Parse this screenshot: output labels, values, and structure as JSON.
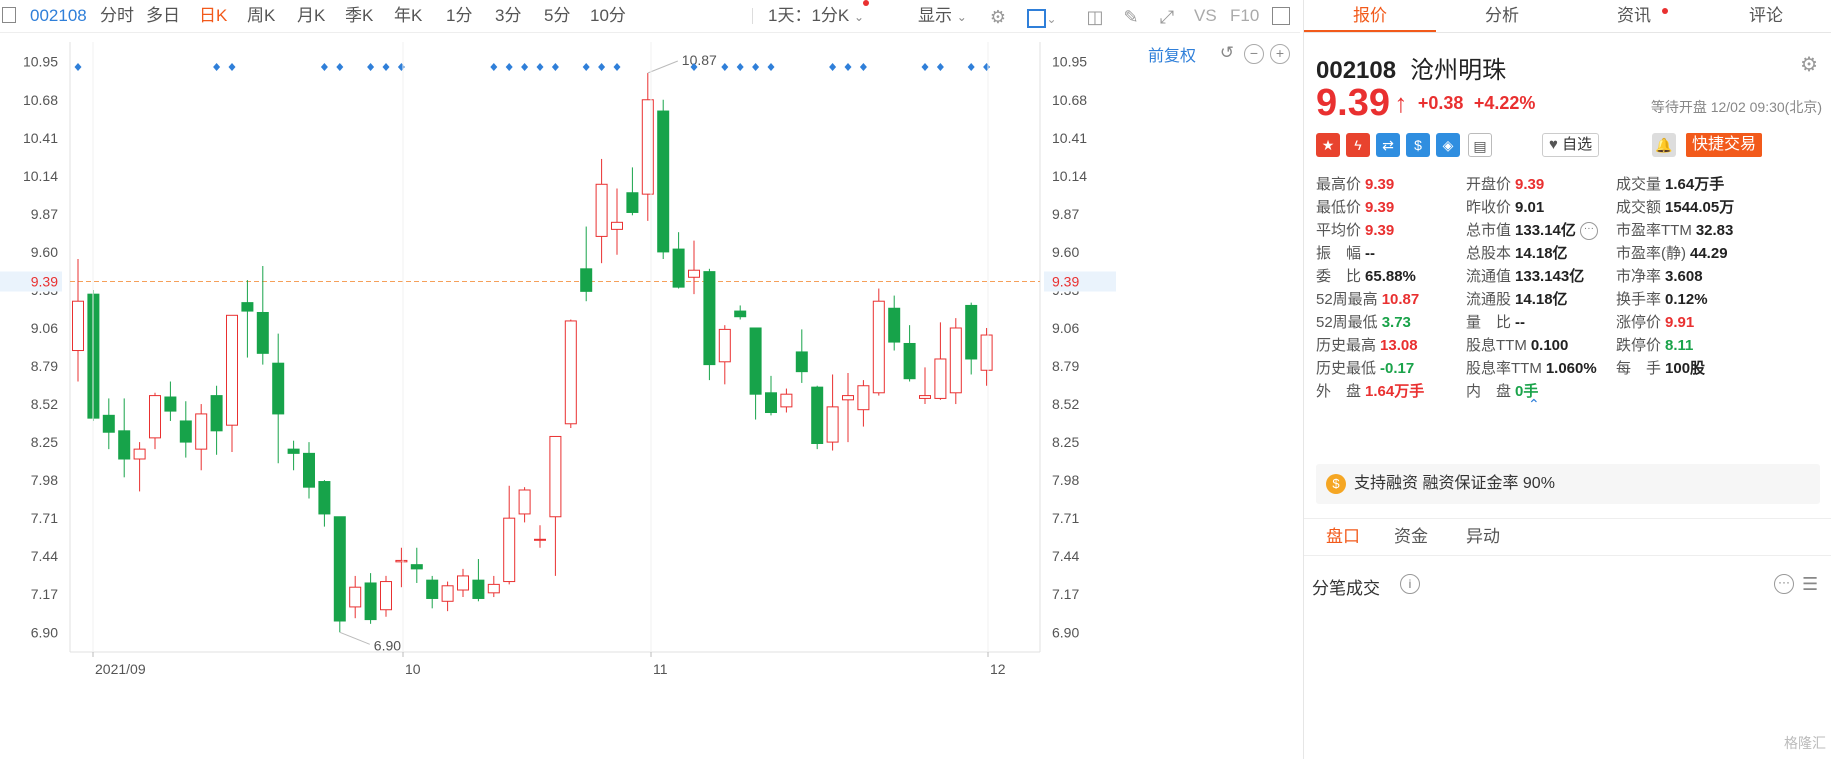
{
  "toolbar": {
    "code": "002108",
    "periods": [
      "分时",
      "多日",
      "日K",
      "周K",
      "月K",
      "季K",
      "年K",
      "1分",
      "3分",
      "5分",
      "10分"
    ],
    "active_period": "日K",
    "interval": "1天：1分K",
    "display": "显示",
    "vs": "VS",
    "f10": "F10"
  },
  "chart": {
    "adjust": "前复权",
    "yticks": [
      "10.95",
      "10.68",
      "10.41",
      "10.14",
      "9.87",
      "9.60",
      "9.33",
      "9.06",
      "8.79",
      "8.52",
      "8.25",
      "7.98",
      "7.71",
      "7.44",
      "7.17",
      "6.90"
    ],
    "current_price_label": "9.39",
    "max_label": "10.87",
    "min_label": "6.90",
    "xlabels": [
      "2021/09",
      "10",
      "11",
      "12"
    ]
  },
  "chart_data": {
    "type": "candlestick",
    "ylim": [
      6.76,
      11.09
    ],
    "current_price": 9.39,
    "candles": [
      {
        "o": 8.9,
        "h": 9.55,
        "l": 8.68,
        "c": 9.25
      },
      {
        "o": 9.3,
        "h": 9.33,
        "l": 8.4,
        "c": 8.42
      },
      {
        "o": 8.44,
        "h": 8.56,
        "l": 8.2,
        "c": 8.32
      },
      {
        "o": 8.33,
        "h": 8.56,
        "l": 8.0,
        "c": 8.13
      },
      {
        "o": 8.13,
        "h": 8.25,
        "l": 7.9,
        "c": 8.2
      },
      {
        "o": 8.28,
        "h": 8.6,
        "l": 8.2,
        "c": 8.58
      },
      {
        "o": 8.57,
        "h": 8.68,
        "l": 8.4,
        "c": 8.47
      },
      {
        "o": 8.4,
        "h": 8.54,
        "l": 8.14,
        "c": 8.25
      },
      {
        "o": 8.2,
        "h": 8.52,
        "l": 8.05,
        "c": 8.45
      },
      {
        "o": 8.58,
        "h": 8.65,
        "l": 8.16,
        "c": 8.33
      },
      {
        "o": 8.37,
        "h": 9.15,
        "l": 8.18,
        "c": 9.15
      },
      {
        "o": 9.24,
        "h": 9.4,
        "l": 8.85,
        "c": 9.18
      },
      {
        "o": 9.17,
        "h": 9.5,
        "l": 8.8,
        "c": 8.88
      },
      {
        "o": 8.81,
        "h": 9.02,
        "l": 8.1,
        "c": 8.45
      },
      {
        "o": 8.2,
        "h": 8.26,
        "l": 8.05,
        "c": 8.17
      },
      {
        "o": 8.17,
        "h": 8.25,
        "l": 7.85,
        "c": 7.93
      },
      {
        "o": 7.97,
        "h": 7.98,
        "l": 7.65,
        "c": 7.74
      },
      {
        "o": 7.72,
        "h": 7.72,
        "l": 6.9,
        "c": 6.98
      },
      {
        "o": 7.08,
        "h": 7.3,
        "l": 7.0,
        "c": 7.22
      },
      {
        "o": 7.25,
        "h": 7.32,
        "l": 6.96,
        "c": 6.99
      },
      {
        "o": 7.06,
        "h": 7.3,
        "l": 7.01,
        "c": 7.26
      },
      {
        "o": 7.4,
        "h": 7.5,
        "l": 7.22,
        "c": 7.41
      },
      {
        "o": 7.38,
        "h": 7.5,
        "l": 7.25,
        "c": 7.35
      },
      {
        "o": 7.27,
        "h": 7.3,
        "l": 7.07,
        "c": 7.14
      },
      {
        "o": 7.12,
        "h": 7.26,
        "l": 7.05,
        "c": 7.23
      },
      {
        "o": 7.2,
        "h": 7.35,
        "l": 7.15,
        "c": 7.3
      },
      {
        "o": 7.27,
        "h": 7.42,
        "l": 7.12,
        "c": 7.14
      },
      {
        "o": 7.18,
        "h": 7.3,
        "l": 7.15,
        "c": 7.24
      },
      {
        "o": 7.26,
        "h": 7.94,
        "l": 7.24,
        "c": 7.71
      },
      {
        "o": 7.74,
        "h": 7.93,
        "l": 7.68,
        "c": 7.91
      },
      {
        "o": 7.56,
        "h": 7.66,
        "l": 7.5,
        "c": 7.56
      },
      {
        "o": 7.72,
        "h": 8.29,
        "l": 7.3,
        "c": 8.29
      },
      {
        "o": 8.38,
        "h": 9.12,
        "l": 8.35,
        "c": 9.11
      },
      {
        "o": 9.48,
        "h": 9.78,
        "l": 9.25,
        "c": 9.32
      },
      {
        "o": 9.71,
        "h": 10.26,
        "l": 9.52,
        "c": 10.08
      },
      {
        "o": 9.76,
        "h": 10.05,
        "l": 9.58,
        "c": 9.81
      },
      {
        "o": 10.02,
        "h": 10.2,
        "l": 9.86,
        "c": 9.88
      },
      {
        "o": 10.01,
        "h": 10.87,
        "l": 9.82,
        "c": 10.68
      },
      {
        "o": 10.6,
        "h": 10.68,
        "l": 9.55,
        "c": 9.6
      },
      {
        "o": 9.62,
        "h": 9.74,
        "l": 9.34,
        "c": 9.35
      },
      {
        "o": 9.42,
        "h": 9.68,
        "l": 9.3,
        "c": 9.47
      },
      {
        "o": 9.46,
        "h": 9.48,
        "l": 8.69,
        "c": 8.8
      },
      {
        "o": 8.82,
        "h": 9.08,
        "l": 8.66,
        "c": 9.05
      },
      {
        "o": 9.18,
        "h": 9.22,
        "l": 9.12,
        "c": 9.14
      },
      {
        "o": 9.06,
        "h": 9.06,
        "l": 8.41,
        "c": 8.59
      },
      {
        "o": 8.6,
        "h": 8.72,
        "l": 8.44,
        "c": 8.46
      },
      {
        "o": 8.5,
        "h": 8.63,
        "l": 8.46,
        "c": 8.59
      },
      {
        "o": 8.89,
        "h": 9.05,
        "l": 8.67,
        "c": 8.75
      },
      {
        "o": 8.64,
        "h": 8.65,
        "l": 8.2,
        "c": 8.24
      },
      {
        "o": 8.25,
        "h": 8.73,
        "l": 8.19,
        "c": 8.5
      },
      {
        "o": 8.55,
        "h": 8.74,
        "l": 8.25,
        "c": 8.58
      },
      {
        "o": 8.48,
        "h": 8.69,
        "l": 8.36,
        "c": 8.65
      },
      {
        "o": 8.6,
        "h": 9.34,
        "l": 8.58,
        "c": 9.25
      },
      {
        "o": 9.2,
        "h": 9.29,
        "l": 8.9,
        "c": 8.96
      },
      {
        "o": 8.95,
        "h": 9.08,
        "l": 8.68,
        "c": 8.7
      },
      {
        "o": 8.56,
        "h": 8.78,
        "l": 8.52,
        "c": 8.58
      },
      {
        "o": 8.56,
        "h": 9.1,
        "l": 8.55,
        "c": 8.84
      },
      {
        "o": 8.6,
        "h": 9.13,
        "l": 8.52,
        "c": 9.06
      },
      {
        "o": 9.22,
        "h": 9.24,
        "l": 8.73,
        "c": 8.84
      },
      {
        "o": 8.76,
        "h": 9.06,
        "l": 8.65,
        "c": 9.01
      }
    ]
  },
  "right": {
    "tabs": [
      "报价",
      "分析",
      "资讯",
      "评论"
    ],
    "code": "002108",
    "name": "沧州明珠",
    "price": "9.39",
    "change": "+0.38",
    "change_pct": "+4.22%",
    "status": "等待开盘 12/02 09:30(北京)",
    "zixuan": "自选",
    "quick_trade": "快捷交易",
    "quote": [
      [
        {
          "label": "最高价",
          "value": "9.39",
          "color": "red"
        },
        {
          "label": "开盘价",
          "value": "9.39",
          "color": "red"
        },
        {
          "label": "成交量",
          "value": "1.64万手",
          "color": "dark"
        }
      ],
      [
        {
          "label": "最低价",
          "value": "9.39",
          "color": "red"
        },
        {
          "label": "昨收价",
          "value": "9.01",
          "color": "dark"
        },
        {
          "label": "成交额",
          "value": "1544.05万",
          "color": "dark"
        }
      ],
      [
        {
          "label": "平均价",
          "value": "9.39",
          "color": "red"
        },
        {
          "label": "总市值",
          "value": "133.14亿",
          "color": "dark"
        },
        {
          "label": "市盈率TTM",
          "value": "32.83",
          "color": "dark"
        }
      ],
      [
        {
          "label": "振　幅",
          "value": "--",
          "color": "dark"
        },
        {
          "label": "总股本",
          "value": "14.18亿",
          "color": "dark"
        },
        {
          "label": "市盈率(静)",
          "value": "44.29",
          "color": "dark"
        }
      ],
      [
        {
          "label": "委　比",
          "value": "65.88%",
          "color": "dark"
        },
        {
          "label": "流通值",
          "value": "133.143亿",
          "color": "dark"
        },
        {
          "label": "市净率",
          "value": "3.608",
          "color": "dark"
        }
      ],
      [
        {
          "label": "52周最高",
          "value": "10.87",
          "color": "red"
        },
        {
          "label": "流通股",
          "value": "14.18亿",
          "color": "dark"
        },
        {
          "label": "换手率",
          "value": "0.12%",
          "color": "dark"
        }
      ],
      [
        {
          "label": "52周最低",
          "value": "3.73",
          "color": "green"
        },
        {
          "label": "量　比",
          "value": "--",
          "color": "dark"
        },
        {
          "label": "涨停价",
          "value": "9.91",
          "color": "red"
        }
      ],
      [
        {
          "label": "历史最高",
          "value": "13.08",
          "color": "red"
        },
        {
          "label": "股息TTM",
          "value": "0.100",
          "color": "dark"
        },
        {
          "label": "跌停价",
          "value": "8.11",
          "color": "green"
        }
      ],
      [
        {
          "label": "历史最低",
          "value": "-0.17",
          "color": "green"
        },
        {
          "label": "股息率TTM",
          "value": "1.060%",
          "color": "dark"
        },
        {
          "label": "每　手",
          "value": "100股",
          "color": "dark"
        }
      ],
      [
        {
          "label": "外　盘",
          "value": "1.64万手",
          "color": "red"
        },
        {
          "label": "内　盘",
          "value": "0手",
          "color": "green"
        },
        null
      ]
    ],
    "margin_note": "支持融资 融资保证金率 90%",
    "bottom_tabs": [
      "盘口",
      "资金",
      "异动"
    ],
    "fenbi": "分笔成交",
    "watermark": "格隆汇"
  }
}
